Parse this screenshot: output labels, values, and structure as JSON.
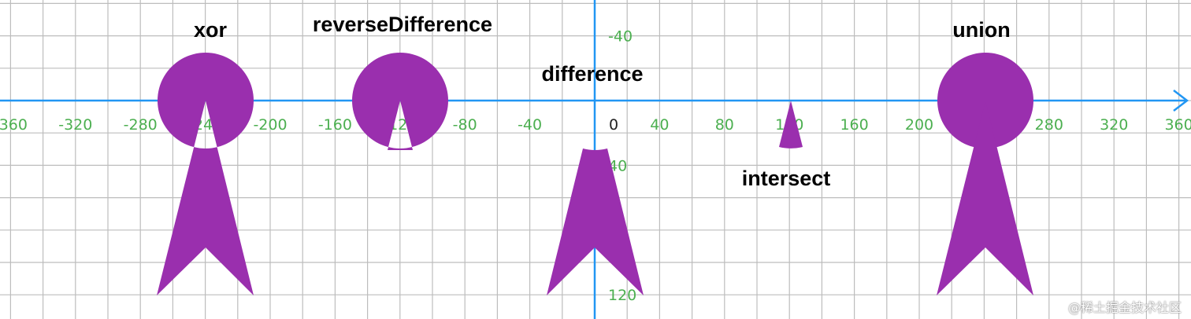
{
  "axes": {
    "x_ticks": [
      "-360",
      "-320",
      "-280",
      "-240",
      "-200",
      "-160",
      "-120",
      "-80",
      "-40",
      "40",
      "80",
      "120",
      "160",
      "200",
      "240",
      "280",
      "320",
      "360"
    ],
    "x_values": [
      -360,
      -320,
      -280,
      -240,
      -200,
      -160,
      -120,
      -80,
      -40,
      40,
      80,
      120,
      160,
      200,
      240,
      280,
      320,
      360
    ],
    "y_ticks": [
      "-40",
      "40",
      "120"
    ],
    "y_values": [
      -40,
      40,
      120
    ],
    "origin_label": "0",
    "axis_color": "#2196f3",
    "tick_color": "#4caf50",
    "grid_color": "#bdbdbd"
  },
  "shape_color": "#9a2fae",
  "operations": [
    {
      "key": "xor",
      "label": "xor"
    },
    {
      "key": "reverseDifference",
      "label": "reverseDifference"
    },
    {
      "key": "difference",
      "label": "difference"
    },
    {
      "key": "intersect",
      "label": "intersect"
    },
    {
      "key": "union",
      "label": "union"
    }
  ],
  "watermark": "@稀土掘金技术社区"
}
